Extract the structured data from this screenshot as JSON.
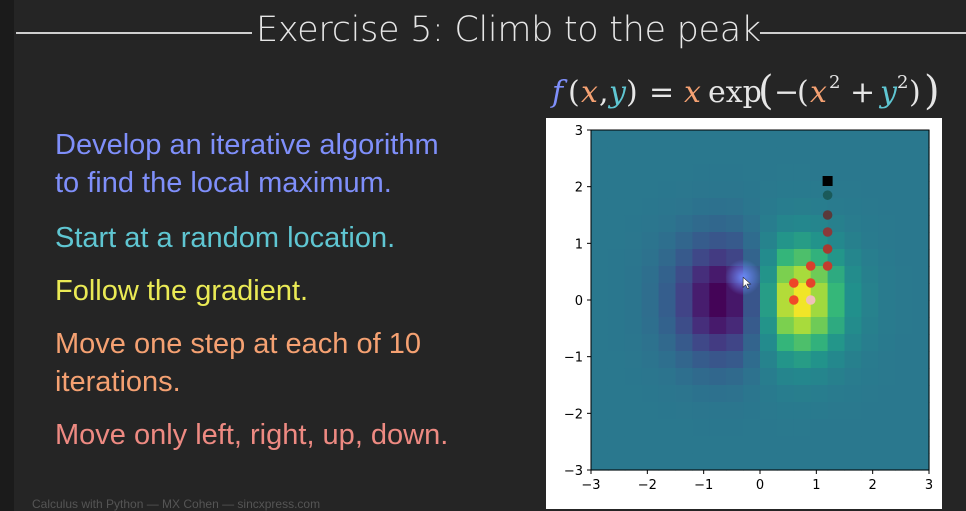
{
  "slide": {
    "title": "Exercise 5: Climb to the peak",
    "footer": "Calculus with Python — MX Cohen — sincxpress.com",
    "bullets": [
      "Develop an iterative algorithm",
      "to find the local maximum.",
      "Start at a random location.",
      "Follow the gradient.",
      "Move one step at each of 10",
      "iterations.",
      "Move only left, right, up, down."
    ],
    "formula": {
      "f": "f",
      "open_paren": "(",
      "x": "x",
      "comma": ",",
      "y": "y",
      "close_paren": ")",
      "equals": "=",
      "x2": "x",
      "exp": "exp",
      "big_open": "(",
      "minus": "−",
      "inner_open": "(",
      "x3": "x",
      "sq1": "2",
      "plus": "+",
      "y2": "y",
      "sq2": "2",
      "inner_close": ")",
      "big_close": ")"
    },
    "colors": {
      "x_var": "#f5a172",
      "y_var": "#5fc6d2",
      "f_color": "#7f8ffa",
      "text": "#e6e6e6"
    }
  },
  "chart_data": {
    "type": "heatmap",
    "function": "x*exp(-(x^2+y^2))",
    "xlim": [
      -3,
      3
    ],
    "ylim": [
      -3,
      3
    ],
    "grid_cells": 20,
    "colormap": "viridis",
    "xticks": [
      "−3",
      "−2",
      "−1",
      "0",
      "1",
      "2",
      "3"
    ],
    "yticks": [
      "3",
      "2",
      "1",
      "0",
      "−1",
      "−2",
      "−3"
    ],
    "xtick_values": [
      -3,
      -2,
      -1,
      0,
      1,
      2,
      3
    ],
    "ytick_values": [
      3,
      2,
      1,
      0,
      -1,
      -2,
      -3
    ],
    "start_point": {
      "x": 1.2,
      "y": 2.1,
      "color": "#000000"
    },
    "path": [
      {
        "x": 1.2,
        "y": 1.85,
        "color": "#1a5a5a"
      },
      {
        "x": 1.2,
        "y": 1.5,
        "color": "#5a3a3a"
      },
      {
        "x": 1.2,
        "y": 1.2,
        "color": "#8a3a3a"
      },
      {
        "x": 1.2,
        "y": 0.9,
        "color": "#a83a30"
      },
      {
        "x": 1.2,
        "y": 0.6,
        "color": "#c23d2e"
      },
      {
        "x": 0.9,
        "y": 0.6,
        "color": "#d8402c"
      },
      {
        "x": 0.9,
        "y": 0.3,
        "color": "#e5432a"
      },
      {
        "x": 0.6,
        "y": 0.3,
        "color": "#ee4628"
      },
      {
        "x": 0.6,
        "y": 0.0,
        "color": "#f04a28"
      },
      {
        "x": 0.9,
        "y": 0.0,
        "color": "#f0c0b8"
      }
    ],
    "cursor": {
      "x": -0.3,
      "y": 0.4
    }
  }
}
